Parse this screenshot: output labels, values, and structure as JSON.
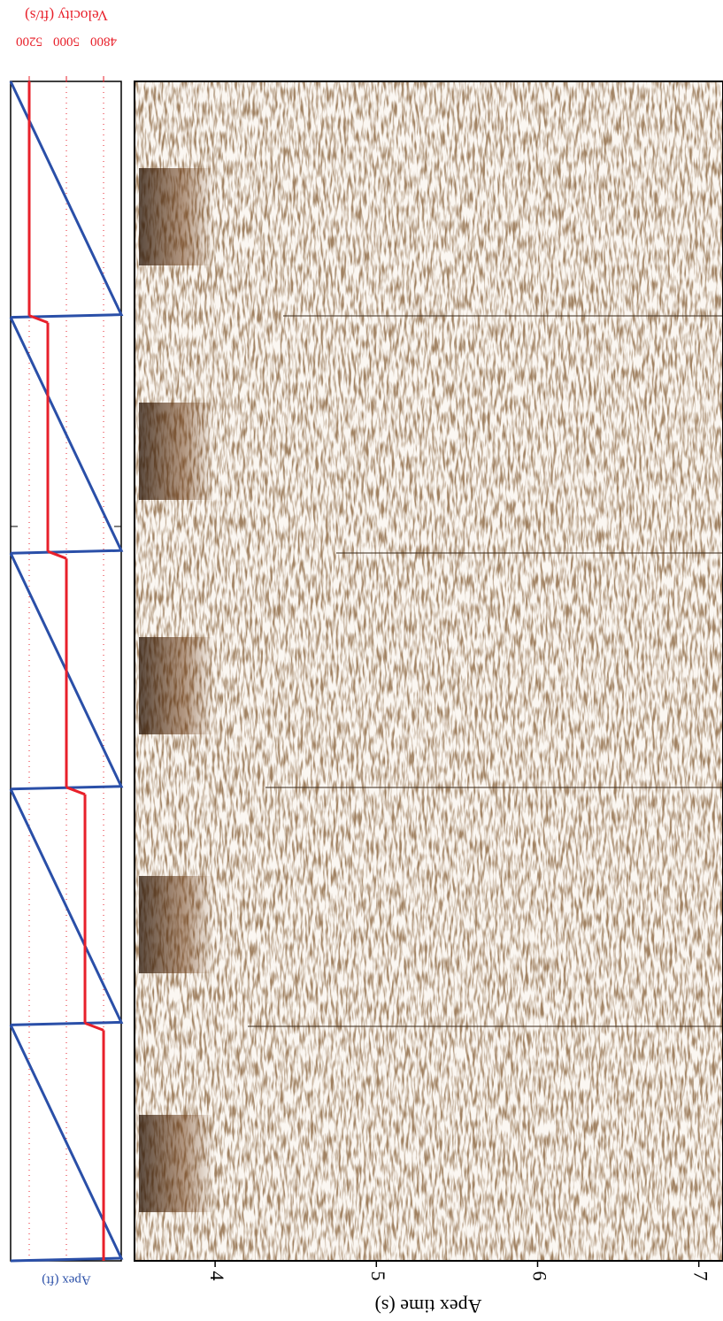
{
  "chart_data": [
    {
      "type": "velocity-panel",
      "title": "Velocity (ft/s)",
      "xlabel": "Apex (ft)",
      "velocity_color": "#e8202a",
      "apex_color": "#2a4fa8",
      "xlim": [
        5300,
        4705
      ],
      "xticks": [
        5200,
        5000,
        4800
      ],
      "grid": true,
      "velocities": [
        5200,
        5100,
        5000,
        4900,
        4800
      ]
    },
    {
      "type": "seismic-image",
      "xlabel": "Apex time (s)",
      "xlim": [
        3.5,
        7.15
      ],
      "xticks": [
        4,
        5,
        6,
        7
      ]
    }
  ]
}
